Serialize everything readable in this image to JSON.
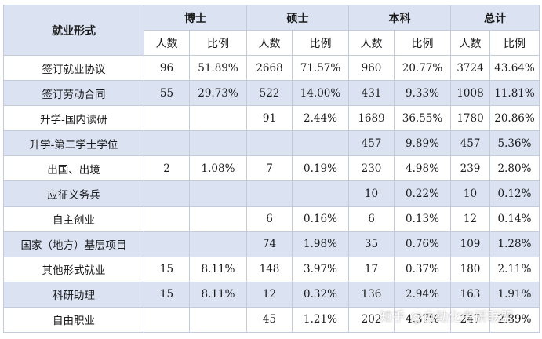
{
  "table": {
    "form_header": "就业形式",
    "groups": [
      "博士",
      "硕士",
      "本科",
      "总计"
    ],
    "sub_headers": [
      "人数",
      "比例",
      "人数",
      "比例",
      "人数",
      "比例",
      "人数",
      "比例"
    ],
    "rows": [
      {
        "label": "签订就业协议",
        "cells": [
          "96",
          "51.89%",
          "2668",
          "71.57%",
          "960",
          "20.77%",
          "3724",
          "43.64%"
        ]
      },
      {
        "label": "签订劳动合同",
        "cells": [
          "55",
          "29.73%",
          "522",
          "14.00%",
          "431",
          "9.33%",
          "1008",
          "11.81%"
        ]
      },
      {
        "label": "升学-国内读研",
        "cells": [
          "",
          "",
          "91",
          "2.44%",
          "1689",
          "36.55%",
          "1780",
          "20.86%"
        ]
      },
      {
        "label": "升学-第二学士学位",
        "cells": [
          "",
          "",
          "",
          "",
          "457",
          "9.89%",
          "457",
          "5.36%"
        ]
      },
      {
        "label": "出国、出境",
        "cells": [
          "2",
          "1.08%",
          "7",
          "0.19%",
          "230",
          "4.98%",
          "239",
          "2.80%"
        ]
      },
      {
        "label": "应征义务兵",
        "cells": [
          "",
          "",
          "",
          "",
          "10",
          "0.22%",
          "10",
          "0.12%"
        ]
      },
      {
        "label": "自主创业",
        "cells": [
          "",
          "",
          "6",
          "0.16%",
          "6",
          "0.13%",
          "12",
          "0.14%"
        ]
      },
      {
        "label": "国家（地方）基层项目",
        "cells": [
          "",
          "",
          "74",
          "1.98%",
          "35",
          "0.76%",
          "109",
          "1.28%"
        ]
      },
      {
        "label": "其他形式就业",
        "cells": [
          "15",
          "8.11%",
          "148",
          "3.97%",
          "17",
          "0.37%",
          "180",
          "2.11%"
        ]
      },
      {
        "label": "科研助理",
        "cells": [
          "15",
          "8.11%",
          "12",
          "0.32%",
          "136",
          "2.94%",
          "163",
          "1.91%"
        ]
      },
      {
        "label": "自由职业",
        "cells": [
          "",
          "",
          "45",
          "1.21%",
          "202",
          "4.37%",
          "247",
          "2.89%"
        ]
      }
    ]
  },
  "watermark": "知乎 @自动化考研联盟",
  "colors": {
    "header_bg": "#dbe3f3",
    "border": "#c4cbd8"
  }
}
